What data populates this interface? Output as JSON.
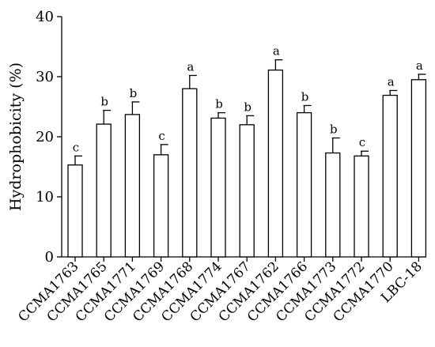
{
  "chart_data": {
    "type": "bar",
    "title": "",
    "xlabel": "",
    "ylabel": "Hydrophobicity  (%)",
    "ylim": [
      0,
      40
    ],
    "yticks": [
      0,
      10,
      20,
      30,
      40
    ],
    "grid": false,
    "categories": [
      "CCMA1763",
      "CCMA1765",
      "CCMA1771",
      "CCMA1769",
      "CCMA1768",
      "CCMA1774",
      "CCMA1767",
      "CCMA1762",
      "CCMA1766",
      "CCMA1773",
      "CCMA1772",
      "CCMA1770",
      "LBC-18"
    ],
    "values": [
      15.3,
      22.1,
      23.7,
      17.0,
      28.0,
      23.1,
      22.0,
      31.1,
      24.0,
      17.3,
      16.8,
      26.9,
      29.5
    ],
    "errors": [
      1.5,
      2.3,
      2.1,
      1.7,
      2.2,
      0.9,
      1.5,
      1.7,
      1.2,
      2.5,
      0.8,
      0.8,
      0.9
    ],
    "significance_letters": [
      "c",
      "b",
      "b",
      "c",
      "a",
      "b",
      "b",
      "a",
      "b",
      "b",
      "c",
      "a",
      "a"
    ],
    "bar_color": "#ffffff",
    "edge_color": "#000000"
  }
}
